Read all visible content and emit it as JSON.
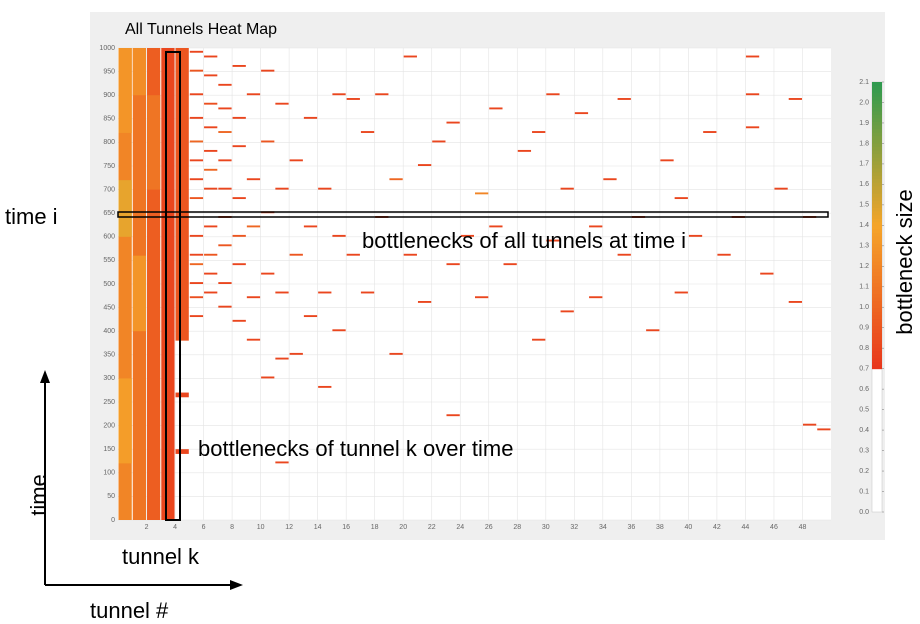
{
  "chart_data": {
    "type": "heatmap",
    "title": "All Tunnels Heat Map",
    "annotations": {
      "time_i": "time i",
      "row_note": "bottlenecks of all tunnels at time i",
      "column_note": "bottlenecks of tunnel k over time",
      "tunnel_k": "tunnel k",
      "time_axis": "time",
      "tunnel_axis": "tunnel #",
      "colorbar_label": "bottleneck size"
    },
    "xlim": [
      0,
      50
    ],
    "xticks": [
      2,
      4,
      6,
      8,
      10,
      12,
      14,
      16,
      18,
      20,
      22,
      24,
      26,
      28,
      30,
      32,
      34,
      36,
      38,
      40,
      42,
      44,
      46,
      48
    ],
    "ylim": [
      0,
      1000
    ],
    "yticks": [
      0,
      50,
      100,
      150,
      200,
      250,
      300,
      350,
      400,
      450,
      500,
      550,
      600,
      650,
      700,
      750,
      800,
      850,
      900,
      950,
      1000
    ],
    "clim": [
      0,
      2.1
    ],
    "cticks": [
      {
        "value": 0,
        "label": "0.0"
      },
      0.1,
      0.2,
      0.3,
      0.4,
      0.5,
      0.6,
      0.7,
      0.8,
      0.9,
      {
        "value": 1,
        "label": "1.0"
      },
      1.1,
      1.2,
      1.3,
      1.4,
      1.5,
      1.6,
      1.7,
      1.8,
      1.9,
      {
        "value": 2,
        "label": "2.0"
      },
      2.1
    ],
    "color_stops": [
      [
        0.7,
        "#e8361c"
      ],
      [
        1.4,
        "#f5a52a"
      ],
      [
        2.1,
        "#2e9a4f"
      ]
    ],
    "grid": true,
    "cells": [
      [
        1,
        0,
        1000,
        1.2
      ],
      [
        1,
        120,
        300,
        1.35
      ],
      [
        1,
        600,
        720,
        1.45
      ],
      [
        1,
        820,
        1000,
        1.3
      ],
      [
        2,
        0,
        1000,
        1.1
      ],
      [
        2,
        400,
        560,
        1.3
      ],
      [
        2,
        900,
        1000,
        1.25
      ],
      [
        3,
        0,
        1000,
        0.95
      ],
      [
        3,
        700,
        900,
        1.1
      ],
      [
        4,
        0,
        1000,
        0.8
      ],
      [
        5,
        380,
        1000,
        0.9
      ],
      [
        5,
        140,
        150,
        0.8
      ],
      [
        5,
        260,
        270,
        0.8
      ],
      [
        6,
        430,
        434,
        0.8
      ],
      [
        6,
        470,
        474,
        0.85
      ],
      [
        6,
        500,
        504,
        0.8
      ],
      [
        6,
        540,
        544,
        1.0
      ],
      [
        6,
        560,
        564,
        0.8
      ],
      [
        6,
        600,
        604,
        0.8
      ],
      [
        6,
        680,
        684,
        0.9
      ],
      [
        6,
        720,
        724,
        0.8
      ],
      [
        6,
        760,
        764,
        0.8
      ],
      [
        6,
        800,
        804,
        1.0
      ],
      [
        6,
        850,
        854,
        0.8
      ],
      [
        6,
        900,
        904,
        0.8
      ],
      [
        6,
        950,
        954,
        0.9
      ],
      [
        6,
        990,
        994,
        0.8
      ],
      [
        7,
        480,
        484,
        0.8
      ],
      [
        7,
        520,
        524,
        0.8
      ],
      [
        7,
        560,
        564,
        0.9
      ],
      [
        7,
        620,
        624,
        0.8
      ],
      [
        7,
        700,
        704,
        0.8
      ],
      [
        7,
        740,
        744,
        1.0
      ],
      [
        7,
        780,
        784,
        0.8
      ],
      [
        7,
        830,
        834,
        0.8
      ],
      [
        7,
        880,
        884,
        0.85
      ],
      [
        7,
        940,
        944,
        0.8
      ],
      [
        7,
        980,
        984,
        0.8
      ],
      [
        8,
        450,
        454,
        0.8
      ],
      [
        8,
        500,
        504,
        0.8
      ],
      [
        8,
        580,
        584,
        0.9
      ],
      [
        8,
        640,
        644,
        0.8
      ],
      [
        8,
        700,
        704,
        0.8
      ],
      [
        8,
        760,
        764,
        0.8
      ],
      [
        8,
        820,
        824,
        1.0
      ],
      [
        8,
        870,
        874,
        0.8
      ],
      [
        8,
        920,
        924,
        0.8
      ],
      [
        9,
        420,
        424,
        0.8
      ],
      [
        9,
        540,
        544,
        0.8
      ],
      [
        9,
        600,
        604,
        0.9
      ],
      [
        9,
        680,
        684,
        0.8
      ],
      [
        9,
        790,
        794,
        0.8
      ],
      [
        9,
        850,
        854,
        0.8
      ],
      [
        9,
        960,
        964,
        0.8
      ],
      [
        10,
        380,
        384,
        0.8
      ],
      [
        10,
        470,
        474,
        0.8
      ],
      [
        10,
        620,
        624,
        1.0
      ],
      [
        10,
        720,
        724,
        0.8
      ],
      [
        10,
        900,
        904,
        0.8
      ],
      [
        11,
        300,
        304,
        0.8
      ],
      [
        11,
        520,
        524,
        0.8
      ],
      [
        11,
        650,
        654,
        0.8
      ],
      [
        11,
        800,
        804,
        0.9
      ],
      [
        11,
        950,
        954,
        0.8
      ],
      [
        12,
        120,
        124,
        0.8
      ],
      [
        12,
        340,
        344,
        0.8
      ],
      [
        12,
        480,
        484,
        0.8
      ],
      [
        12,
        700,
        704,
        0.8
      ],
      [
        12,
        880,
        884,
        0.8
      ],
      [
        13,
        350,
        354,
        0.8
      ],
      [
        13,
        560,
        564,
        0.9
      ],
      [
        13,
        760,
        764,
        0.8
      ],
      [
        14,
        430,
        434,
        0.8
      ],
      [
        14,
        620,
        624,
        0.8
      ],
      [
        14,
        850,
        854,
        0.8
      ],
      [
        15,
        280,
        284,
        0.8
      ],
      [
        15,
        480,
        484,
        0.8
      ],
      [
        15,
        700,
        704,
        0.8
      ],
      [
        16,
        400,
        404,
        0.8
      ],
      [
        16,
        600,
        604,
        0.8
      ],
      [
        16,
        900,
        904,
        0.8
      ],
      [
        17,
        560,
        564,
        0.8
      ],
      [
        17,
        890,
        894,
        0.8
      ],
      [
        18,
        480,
        484,
        0.8
      ],
      [
        18,
        820,
        824,
        0.8
      ],
      [
        19,
        640,
        644,
        0.8
      ],
      [
        19,
        900,
        904,
        0.8
      ],
      [
        20,
        350,
        354,
        0.8
      ],
      [
        20,
        720,
        724,
        1.0
      ],
      [
        21,
        560,
        564,
        0.8
      ],
      [
        21,
        980,
        984,
        0.8
      ],
      [
        22,
        460,
        464,
        0.8
      ],
      [
        22,
        750,
        754,
        0.8
      ],
      [
        23,
        800,
        804,
        0.8
      ],
      [
        24,
        220,
        224,
        0.8
      ],
      [
        24,
        540,
        544,
        0.8
      ],
      [
        24,
        840,
        844,
        0.8
      ],
      [
        25,
        600,
        604,
        0.8
      ],
      [
        26,
        470,
        474,
        0.8
      ],
      [
        26,
        690,
        694,
        1.2
      ],
      [
        27,
        620,
        624,
        0.8
      ],
      [
        27,
        870,
        874,
        0.8
      ],
      [
        28,
        540,
        544,
        0.8
      ],
      [
        29,
        780,
        784,
        0.8
      ],
      [
        30,
        380,
        384,
        0.8
      ],
      [
        30,
        820,
        824,
        0.8
      ],
      [
        31,
        590,
        594,
        0.8
      ],
      [
        31,
        900,
        904,
        0.8
      ],
      [
        32,
        440,
        444,
        0.8
      ],
      [
        32,
        700,
        704,
        0.8
      ],
      [
        33,
        860,
        864,
        0.8
      ],
      [
        34,
        470,
        474,
        0.8
      ],
      [
        34,
        620,
        624,
        0.8
      ],
      [
        35,
        720,
        724,
        0.8
      ],
      [
        36,
        560,
        564,
        0.8
      ],
      [
        36,
        890,
        894,
        0.8
      ],
      [
        37,
        640,
        644,
        0.8
      ],
      [
        38,
        400,
        404,
        0.8
      ],
      [
        39,
        760,
        764,
        0.8
      ],
      [
        40,
        480,
        484,
        0.8
      ],
      [
        40,
        680,
        684,
        0.8
      ],
      [
        41,
        600,
        604,
        0.8
      ],
      [
        42,
        820,
        824,
        0.8
      ],
      [
        43,
        560,
        564,
        0.8
      ],
      [
        44,
        640,
        644,
        0.8
      ],
      [
        45,
        830,
        834,
        0.8
      ],
      [
        45,
        900,
        904,
        0.8
      ],
      [
        45,
        980,
        984,
        0.8
      ],
      [
        46,
        520,
        524,
        0.8
      ],
      [
        47,
        700,
        704,
        0.8
      ],
      [
        48,
        460,
        464,
        0.8
      ],
      [
        48,
        890,
        894,
        0.8
      ],
      [
        49,
        640,
        644,
        0.8
      ],
      [
        49,
        200,
        204,
        0.8
      ],
      [
        50,
        190,
        194,
        0.8
      ]
    ]
  }
}
